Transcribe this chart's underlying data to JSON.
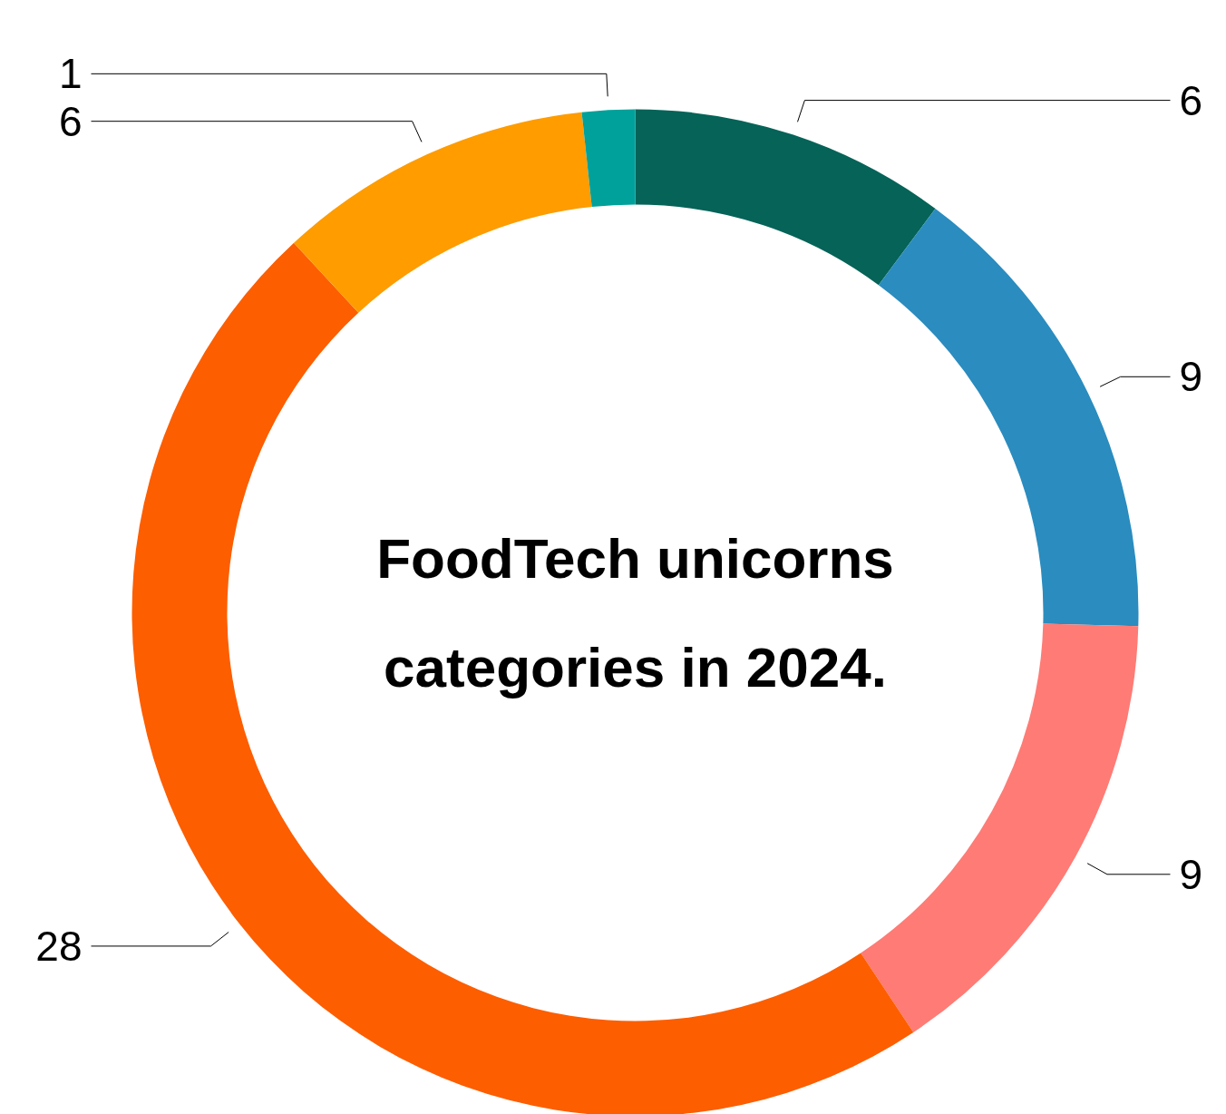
{
  "chart_data": {
    "type": "donut",
    "title": "FoodTech unicorns\ncategories in 2024.",
    "categories": [
      null,
      null,
      null,
      null,
      null,
      null
    ],
    "values": [
      6,
      9,
      9,
      28,
      6,
      1
    ],
    "colors": [
      "#056358",
      "#2a8cbf",
      "#ff7b75",
      "#fd5e00",
      "#fe9c00",
      "#00a19a"
    ],
    "data_labels": true
  }
}
